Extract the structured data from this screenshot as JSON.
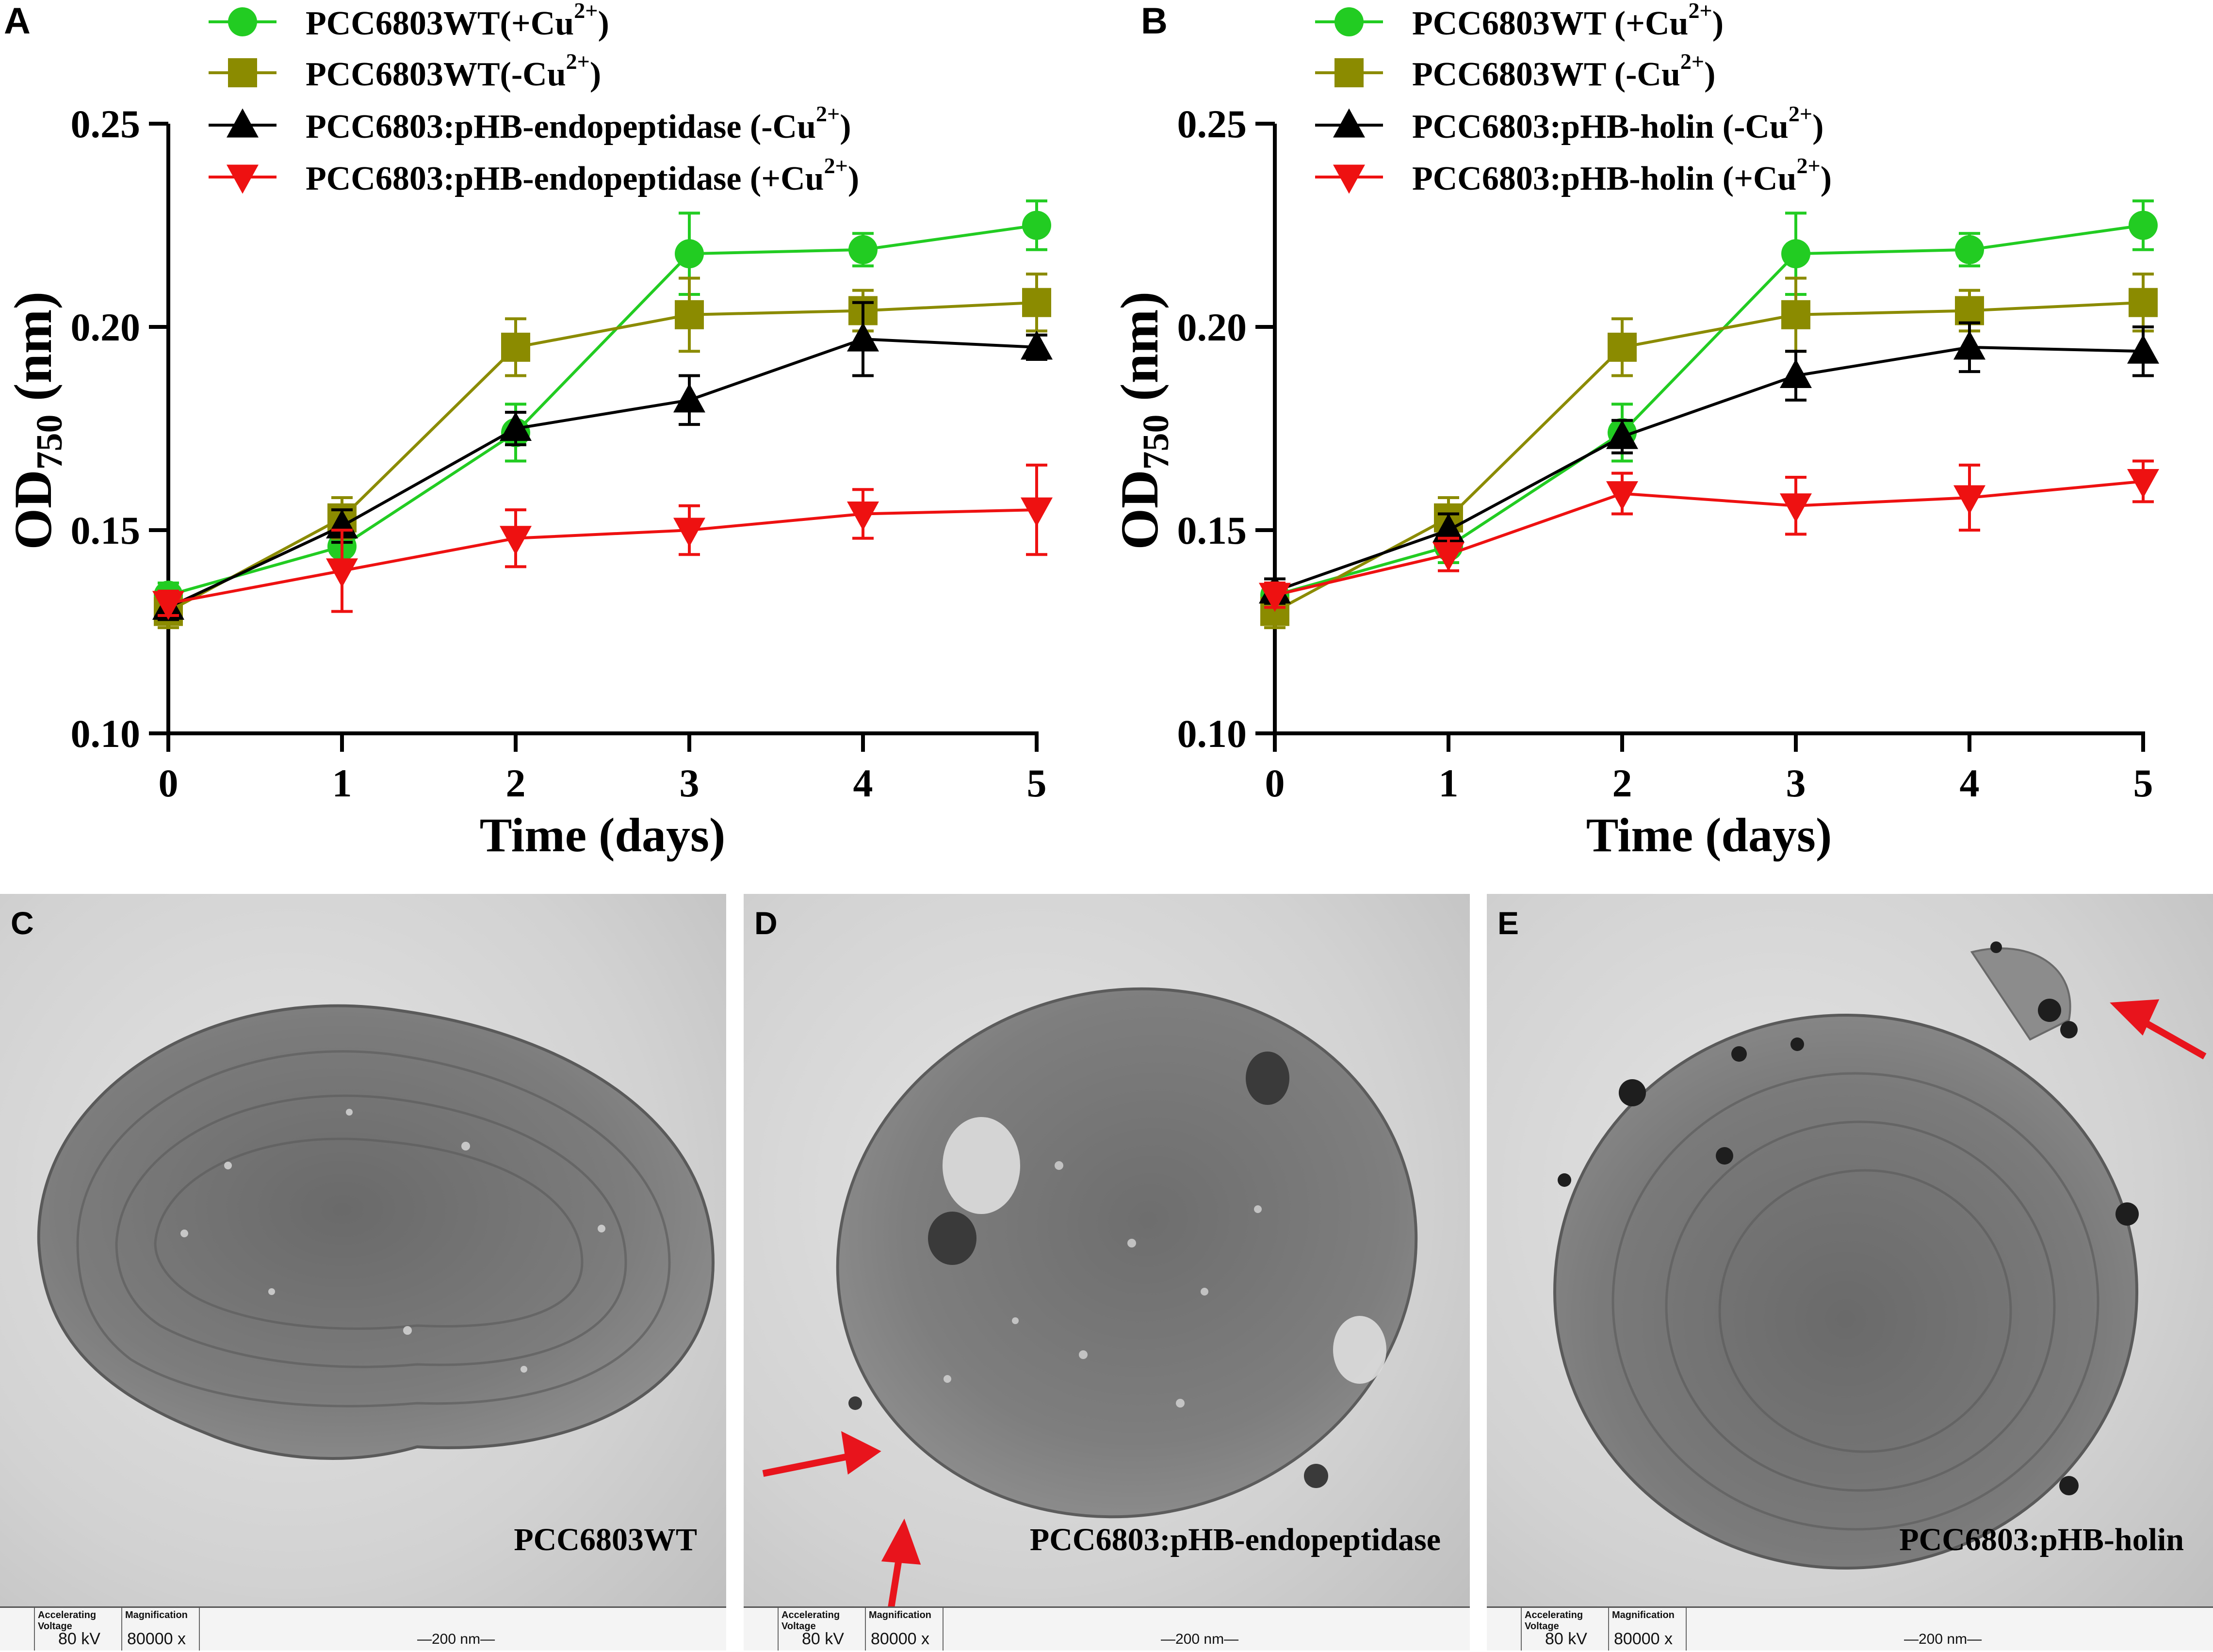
{
  "panels": [
    {
      "letter": "A",
      "chart_data": {
        "type": "line",
        "xlabel": "Time (days)",
        "ylabel_main": "OD",
        "ylabel_sub": "750",
        "ylabel_unit": " (nm)",
        "xlim": [
          0,
          5
        ],
        "ylim": [
          0.1,
          0.25
        ],
        "xticks": [
          "0",
          "1",
          "2",
          "3",
          "4",
          "5"
        ],
        "yticks": [
          "0.10",
          "0.15",
          "0.20",
          "0.25"
        ],
        "x": [
          0,
          1,
          2,
          3,
          4,
          5
        ],
        "legend_position": "top",
        "series": [
          {
            "name": "PCC6803WT(+Cu",
            "sup": "2+",
            "suffix": ")",
            "color": "#22cc22",
            "marker": "circle",
            "values": [
              0.134,
              0.146,
              0.174,
              0.218,
              0.219,
              0.225
            ],
            "errors": [
              0.003,
              0.004,
              0.007,
              0.01,
              0.004,
              0.006
            ]
          },
          {
            "name": "PCC6803WT(-Cu",
            "sup": "2+",
            "suffix": ")",
            "color": "#8b8b00",
            "marker": "square",
            "values": [
              0.13,
              0.153,
              0.195,
              0.203,
              0.204,
              0.206
            ],
            "errors": [
              0.004,
              0.005,
              0.007,
              0.009,
              0.005,
              0.007
            ]
          },
          {
            "name": "PCC6803:pHB-endopeptidase (-Cu",
            "sup": "2+",
            "suffix": ")",
            "color": "#000000",
            "marker": "triangle-up",
            "values": [
              0.131,
              0.151,
              0.175,
              0.182,
              0.197,
              0.195
            ],
            "errors": [
              0.003,
              0.004,
              0.004,
              0.006,
              0.009,
              0.003
            ]
          },
          {
            "name": "PCC6803:pHB-endopeptidase (+Cu",
            "sup": "2+",
            "suffix": ")",
            "color": "#ee1111",
            "marker": "triangle-down",
            "values": [
              0.132,
              0.14,
              0.148,
              0.15,
              0.154,
              0.155
            ],
            "errors": [
              0.003,
              0.01,
              0.007,
              0.006,
              0.006,
              0.011
            ]
          }
        ]
      }
    },
    {
      "letter": "B",
      "chart_data": {
        "type": "line",
        "xlabel": "Time (days)",
        "ylabel_main": "OD",
        "ylabel_sub": "750",
        "ylabel_unit": " (nm)",
        "xlim": [
          0,
          5
        ],
        "ylim": [
          0.1,
          0.25
        ],
        "xticks": [
          "0",
          "1",
          "2",
          "3",
          "4",
          "5"
        ],
        "yticks": [
          "0.10",
          "0.15",
          "0.20",
          "0.25"
        ],
        "x": [
          0,
          1,
          2,
          3,
          4,
          5
        ],
        "legend_position": "top",
        "series": [
          {
            "name": "PCC6803WT (+Cu",
            "sup": "2+",
            "suffix": ")",
            "color": "#22cc22",
            "marker": "circle",
            "values": [
              0.134,
              0.146,
              0.174,
              0.218,
              0.219,
              0.225
            ],
            "errors": [
              0.003,
              0.004,
              0.007,
              0.01,
              0.004,
              0.006
            ]
          },
          {
            "name": "PCC6803WT (-Cu",
            "sup": "2+",
            "suffix": ")",
            "color": "#8b8b00",
            "marker": "square",
            "values": [
              0.13,
              0.153,
              0.195,
              0.203,
              0.204,
              0.206
            ],
            "errors": [
              0.004,
              0.005,
              0.007,
              0.009,
              0.005,
              0.007
            ]
          },
          {
            "name": "PCC6803:pHB-holin (-Cu",
            "sup": "2+",
            "suffix": ")",
            "color": "#000000",
            "marker": "triangle-up",
            "values": [
              0.135,
              0.15,
              0.173,
              0.188,
              0.195,
              0.194
            ],
            "errors": [
              0.003,
              0.004,
              0.004,
              0.006,
              0.006,
              0.006
            ]
          },
          {
            "name": "PCC6803:pHB-holin (+Cu",
            "sup": "2+",
            "suffix": ")",
            "color": "#ee1111",
            "marker": "triangle-down",
            "values": [
              0.134,
              0.144,
              0.159,
              0.156,
              0.158,
              0.162
            ],
            "errors": [
              0.003,
              0.004,
              0.005,
              0.007,
              0.008,
              0.005
            ]
          }
        ]
      }
    }
  ],
  "micrographs": [
    {
      "letter": "C",
      "caption": "PCC6803WT",
      "voltage_label": "Accelerating Voltage",
      "voltage": "80  kV",
      "magnification_label": "Magnification",
      "magnification": "80000  x",
      "scale": "—200  nm—"
    },
    {
      "letter": "D",
      "caption": "PCC6803:pHB-endopeptidase",
      "voltage_label": "Accelerating Voltage",
      "voltage": "80  kV",
      "magnification_label": "Magnification",
      "magnification": "80000  x",
      "scale": "—200  nm—"
    },
    {
      "letter": "E",
      "caption": "PCC6803:pHB-holin",
      "voltage_label": "Accelerating Voltage",
      "voltage": "80  kV",
      "magnification_label": "Magnification",
      "magnification": "80000  x",
      "scale": "—200  nm—"
    }
  ],
  "colors": {
    "arrow": "#e8141c"
  }
}
